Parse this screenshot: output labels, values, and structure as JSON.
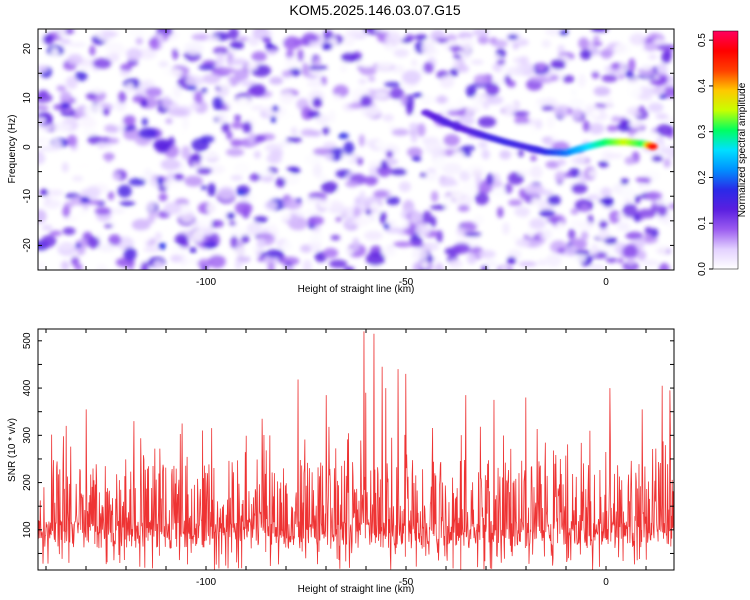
{
  "title": "KOM5.2025.146.03.07.G15",
  "chart_data": [
    {
      "type": "heatmap",
      "xlabel": "Height of straight line (km)",
      "ylabel": "Frequency (Hz)",
      "xlim": [
        -142,
        17
      ],
      "ylim": [
        -25,
        24
      ],
      "x_ticks": [
        -100,
        -50,
        0
      ],
      "y_ticks": [
        -20,
        -10,
        0,
        10,
        20
      ],
      "colorbar": {
        "label": "Normalized spectral amplitude",
        "range": [
          0.0,
          0.52
        ],
        "ticks": [
          0.0,
          0.1,
          0.2,
          0.3,
          0.4,
          0.5
        ],
        "colormap": [
          "#ffffff",
          "#e3d1ff",
          "#9b5cf0",
          "#5a1fe0",
          "#2a2ae8",
          "#0090ff",
          "#00e0ff",
          "#00ff60",
          "#c8ff00",
          "#ffc800",
          "#ff4000",
          "#ff0000",
          "#ff0060"
        ]
      },
      "ridge": {
        "x": [
          -45,
          -40,
          -35,
          -30,
          -25,
          -20,
          -15,
          -10,
          -5,
          0,
          5,
          10,
          12
        ],
        "y": [
          7,
          5,
          3.5,
          2.2,
          1,
          0,
          -1,
          -1.2,
          0,
          1,
          1,
          0.6,
          0
        ],
        "amplitude": [
          0.12,
          0.14,
          0.13,
          0.15,
          0.16,
          0.15,
          0.17,
          0.2,
          0.25,
          0.3,
          0.35,
          0.3,
          0.5
        ]
      },
      "background_amplitude_range": [
        0.0,
        0.15
      ]
    },
    {
      "type": "line",
      "xlabel": "Height of straight line (km)",
      "ylabel": "SNR (10 * v/v)",
      "xlim": [
        -142,
        17
      ],
      "ylim": [
        15,
        525
      ],
      "x_ticks": [
        -100,
        -50,
        0
      ],
      "y_ticks": [
        100,
        200,
        300,
        400,
        500
      ],
      "line_color": "#ee3333",
      "baseline_range": [
        60,
        250
      ],
      "peaks": [
        {
          "x": -135,
          "y": 320
        },
        {
          "x": -130,
          "y": 355
        },
        {
          "x": -118,
          "y": 330
        },
        {
          "x": -106,
          "y": 325
        },
        {
          "x": -86,
          "y": 335
        },
        {
          "x": -77,
          "y": 418
        },
        {
          "x": -70,
          "y": 385
        },
        {
          "x": -60,
          "y": 390
        },
        {
          "x": -55,
          "y": 400
        },
        {
          "x": -60.5,
          "y": 520
        },
        {
          "x": -58,
          "y": 515
        },
        {
          "x": -56,
          "y": 445
        },
        {
          "x": -52,
          "y": 440
        },
        {
          "x": -50,
          "y": 430
        },
        {
          "x": -35,
          "y": 385
        },
        {
          "x": -28,
          "y": 375
        },
        {
          "x": -20,
          "y": 380
        },
        {
          "x": 1,
          "y": 400
        },
        {
          "x": 9,
          "y": 355
        },
        {
          "x": 14,
          "y": 405
        },
        {
          "x": 16,
          "y": 395
        }
      ]
    }
  ]
}
